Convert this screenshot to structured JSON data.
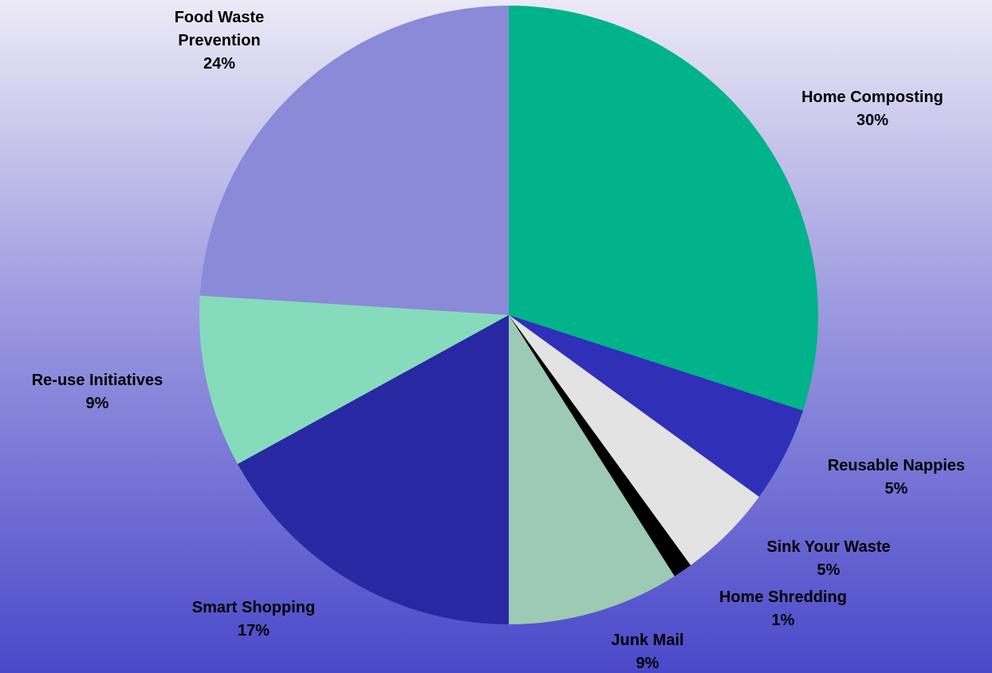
{
  "chart_data": {
    "type": "pie",
    "title": "",
    "legend": "none",
    "slices": [
      {
        "label": "Home Composting",
        "value": 30,
        "pct_label": "30%",
        "color": "#00b38a"
      },
      {
        "label": "Reusable Nappies",
        "value": 5,
        "pct_label": "5%",
        "color": "#2f2fb8"
      },
      {
        "label": "Sink Your Waste",
        "value": 5,
        "pct_label": "5%",
        "color": "#e3e3e3"
      },
      {
        "label": "Home Shredding",
        "value": 1,
        "pct_label": "1%",
        "color": "#000000"
      },
      {
        "label": "Junk Mail",
        "value": 9,
        "pct_label": "9%",
        "color": "#9ccab5"
      },
      {
        "label": "Smart Shopping",
        "value": 17,
        "pct_label": "17%",
        "color": "#2828a3"
      },
      {
        "label": "Re-use Initiatives",
        "value": 9,
        "pct_label": "9%",
        "color": "#86dbbd"
      },
      {
        "label": "Food Waste Prevention",
        "value": 24,
        "pct_label": "24%",
        "color": "#8a8ad8"
      }
    ]
  }
}
